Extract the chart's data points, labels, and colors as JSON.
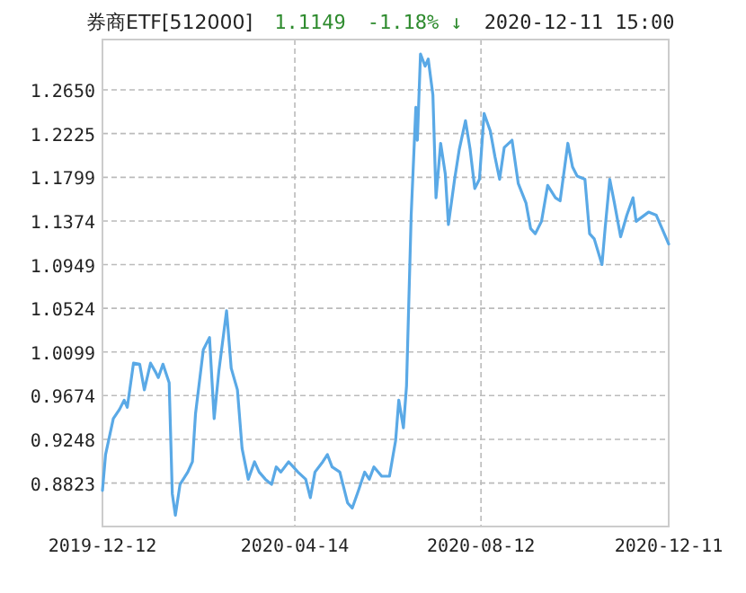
{
  "chart_data": {
    "type": "line",
    "title": "券商ETF[512000]",
    "annotations": [
      "1.1149",
      "-1.18% ↓",
      "2020-12-11 15:00"
    ],
    "x": [
      "2019-12-12",
      "2019-12-14",
      "2019-12-19",
      "2019-12-23",
      "2019-12-26",
      "2019-12-28",
      "2020-01-01",
      "2020-01-05",
      "2020-01-08",
      "2020-01-12",
      "2020-01-15",
      "2020-01-17",
      "2020-01-20",
      "2020-01-24",
      "2020-01-26",
      "2020-01-28",
      "2020-01-31",
      "2020-02-05",
      "2020-02-08",
      "2020-02-10",
      "2020-02-15",
      "2020-02-19",
      "2020-02-22",
      "2020-02-25",
      "2020-03-01",
      "2020-03-04",
      "2020-03-08",
      "2020-03-11",
      "2020-03-15",
      "2020-03-19",
      "2020-03-22",
      "2020-03-26",
      "2020-03-30",
      "2020-04-02",
      "2020-04-05",
      "2020-04-10",
      "2020-04-13",
      "2020-04-16",
      "2020-04-21",
      "2020-04-24",
      "2020-04-27",
      "2020-05-02",
      "2020-05-05",
      "2020-05-08",
      "2020-05-13",
      "2020-05-18",
      "2020-05-21",
      "2020-05-25",
      "2020-05-29",
      "2020-06-01",
      "2020-06-04",
      "2020-06-09",
      "2020-06-14",
      "2020-06-18",
      "2020-06-20",
      "2020-06-23",
      "2020-06-25",
      "2020-06-28",
      "2020-07-01",
      "2020-07-02",
      "2020-07-04",
      "2020-07-07",
      "2020-07-09",
      "2020-07-12",
      "2020-07-14",
      "2020-07-17",
      "2020-07-20",
      "2020-07-22",
      "2020-07-26",
      "2020-07-29",
      "2020-08-02",
      "2020-08-05",
      "2020-08-08",
      "2020-08-11",
      "2020-08-14",
      "2020-08-18",
      "2020-08-21",
      "2020-08-24",
      "2020-08-27",
      "2020-09-01",
      "2020-09-05",
      "2020-09-10",
      "2020-09-13",
      "2020-09-16",
      "2020-09-20",
      "2020-09-24",
      "2020-09-29",
      "2020-10-02",
      "2020-10-07",
      "2020-10-10",
      "2020-10-13",
      "2020-10-18",
      "2020-10-21",
      "2020-10-24",
      "2020-10-29",
      "2020-10-31",
      "2020-11-03",
      "2020-11-06",
      "2020-11-10",
      "2020-11-14",
      "2020-11-18",
      "2020-11-20",
      "2020-11-28",
      "2020-12-03",
      "2020-12-11"
    ],
    "series": [
      {
        "color": "#5aa9e6",
        "values": [
          0.875,
          0.91,
          0.945,
          0.954,
          0.963,
          0.956,
          0.999,
          0.998,
          0.973,
          0.999,
          0.991,
          0.985,
          0.998,
          0.98,
          0.872,
          0.851,
          0.881,
          0.893,
          0.903,
          0.95,
          1.012,
          1.024,
          0.945,
          0.991,
          1.05,
          0.994,
          0.973,
          0.916,
          0.886,
          0.903,
          0.893,
          0.886,
          0.881,
          0.898,
          0.893,
          0.903,
          0.898,
          0.893,
          0.886,
          0.868,
          0.893,
          0.903,
          0.91,
          0.898,
          0.893,
          0.863,
          0.858,
          0.875,
          0.893,
          0.886,
          0.898,
          0.889,
          0.889,
          0.924,
          0.963,
          0.936,
          0.977,
          1.143,
          1.248,
          1.216,
          1.3,
          1.288,
          1.295,
          1.26,
          1.16,
          1.213,
          1.183,
          1.134,
          1.178,
          1.207,
          1.235,
          1.207,
          1.169,
          1.178,
          1.242,
          1.225,
          1.2,
          1.178,
          1.209,
          1.216,
          1.174,
          1.155,
          1.13,
          1.125,
          1.137,
          1.172,
          1.16,
          1.157,
          1.213,
          1.19,
          1.181,
          1.178,
          1.125,
          1.12,
          1.095,
          1.13,
          1.178,
          1.155,
          1.122,
          1.143,
          1.16,
          1.137,
          1.146,
          1.143,
          1.115
        ]
      }
    ],
    "xlim": [
      "2019-12-12",
      "2020-12-11"
    ],
    "xticks": [
      "2019-12-12",
      "2020-04-14",
      "2020-08-12",
      "2020-12-11"
    ],
    "ylim": [
      0.84,
      1.314
    ],
    "yticks": [
      {
        "value": 1.265,
        "label": "1.2650"
      },
      1.2225,
      1.1799,
      1.1374,
      1.0949,
      1.0524,
      1.0099,
      0.9674,
      0.9248,
      0.8823
    ],
    "grid": true
  }
}
